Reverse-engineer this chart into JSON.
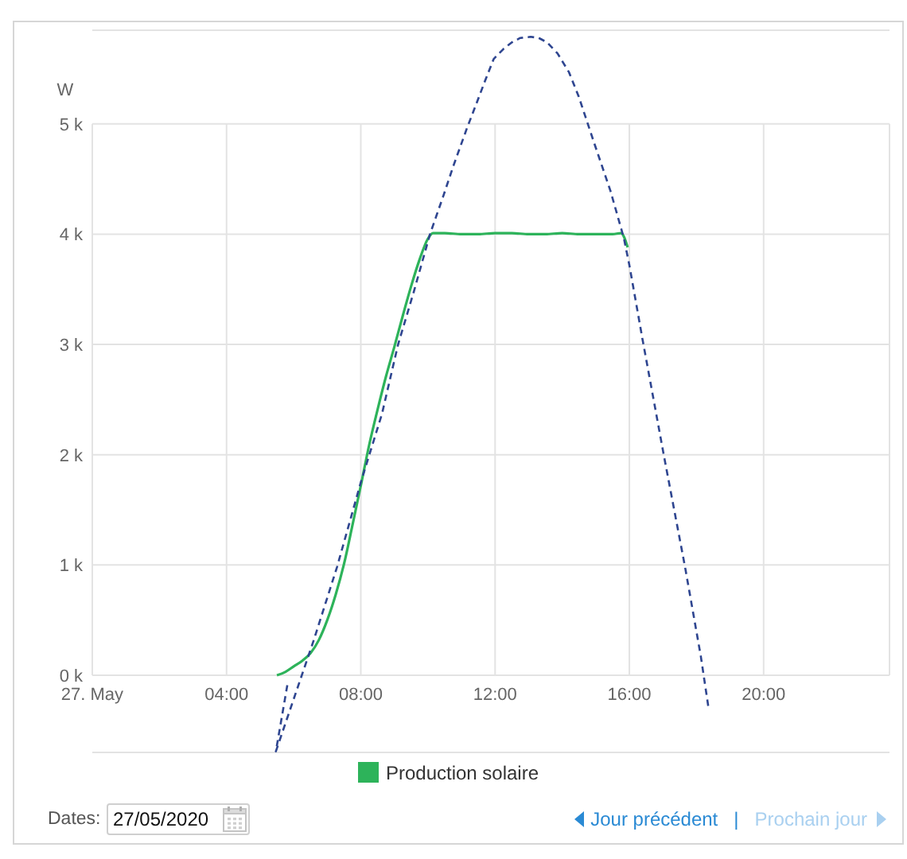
{
  "chart_data": {
    "type": "line",
    "ylabel": "W",
    "series": [
      {
        "name": "Production solaire",
        "color": "#2db35a",
        "x": [
          5.5,
          5.75,
          6,
          6.25,
          6.5,
          6.75,
          7,
          7.25,
          7.5,
          7.75,
          8,
          8.25,
          8.5,
          8.75,
          9,
          9.25,
          9.5,
          9.75,
          10,
          10.15,
          10.5,
          11,
          11.5,
          12,
          12.5,
          13,
          13.5,
          14,
          14.5,
          15,
          15.5,
          15.75,
          15.95
        ],
        "values": [
          0,
          30,
          80,
          130,
          200,
          320,
          500,
          730,
          1010,
          1360,
          1720,
          2090,
          2410,
          2710,
          2980,
          3260,
          3530,
          3770,
          3960,
          4010,
          4010,
          4000,
          4000,
          4010,
          4010,
          4000,
          4000,
          4010,
          4000,
          4000,
          4000,
          4010,
          3880
        ]
      },
      {
        "color": "#2e4590",
        "line_style": "dashed",
        "x": [
          5.81,
          5.47,
          6.6,
          7.29,
          8.0,
          8.63,
          9.11,
          9.58,
          10.06,
          10.45,
          10.77,
          11.16,
          11.4,
          11.7,
          11.96,
          12.25,
          12.5,
          12.75,
          13.06,
          13.3,
          13.55,
          13.86,
          14.2,
          14.49,
          14.96,
          15.44,
          15.84,
          16.0,
          16.39,
          17.03,
          17.66,
          18.13,
          18.36
        ],
        "values": [
          -90,
          -690,
          320,
          980,
          1750,
          2370,
          3000,
          3480,
          4000,
          4340,
          4630,
          4960,
          5150,
          5390,
          5590,
          5680,
          5740,
          5780,
          5790,
          5780,
          5740,
          5640,
          5470,
          5250,
          4820,
          4390,
          3960,
          3720,
          3050,
          1990,
          980,
          170,
          -300
        ]
      }
    ],
    "xlim": [
      0,
      23.75
    ],
    "xticks": [
      {
        "value": 0,
        "label": "27. May"
      },
      {
        "value": 4,
        "label": "04:00"
      },
      {
        "value": 8,
        "label": "08:00"
      },
      {
        "value": 12,
        "label": "12:00"
      },
      {
        "value": 16,
        "label": "16:00"
      },
      {
        "value": 20,
        "label": "20:00"
      }
    ],
    "ylim": [
      -700,
      5850
    ],
    "yticks": [
      {
        "value": 0,
        "label": "0 k"
      },
      {
        "value": 1000,
        "label": "1 k"
      },
      {
        "value": 2000,
        "label": "2 k"
      },
      {
        "value": 3000,
        "label": "3 k"
      },
      {
        "value": 4000,
        "label": "4 k"
      },
      {
        "value": 5000,
        "label": "5 k"
      }
    ],
    "grid": true,
    "legend": "bottom",
    "marker": "none",
    "annotations": [
      "Dates:",
      "27/05/2020",
      "Jour précédent",
      "|",
      "Prochain jour"
    ]
  }
}
